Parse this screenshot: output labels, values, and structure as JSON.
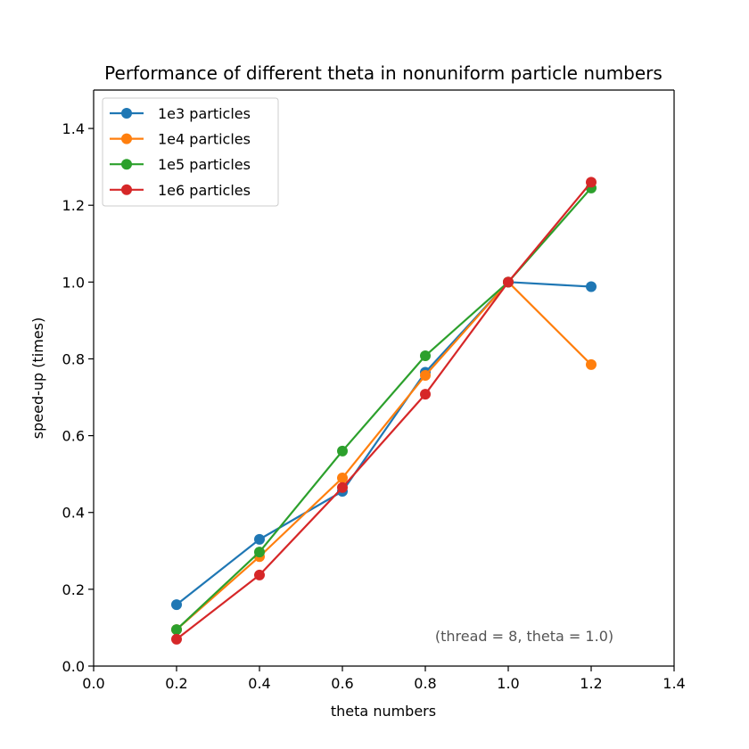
{
  "chart_data": {
    "type": "line",
    "title": "Performance of different theta in nonuniform particle numbers",
    "xlabel": "theta numbers",
    "ylabel": "speed-up (times)",
    "xlim": [
      0.0,
      1.4
    ],
    "ylim": [
      0.0,
      1.5
    ],
    "xticks": [
      "0.0",
      "0.2",
      "0.4",
      "0.6",
      "0.8",
      "1.0",
      "1.2",
      "1.4"
    ],
    "yticks": [
      "0.0",
      "0.2",
      "0.4",
      "0.6",
      "0.8",
      "1.0",
      "1.2",
      "1.4"
    ],
    "grid": false,
    "legend_position": "top-left",
    "annotation": "(thread = 8, theta = 1.0)",
    "x": [
      0.2,
      0.4,
      0.6,
      0.8,
      1.0,
      1.2
    ],
    "series": [
      {
        "name": "1e3 particles",
        "color": "#1f77b4",
        "values": [
          0.16,
          0.33,
          0.455,
          0.765,
          1.0,
          0.988
        ]
      },
      {
        "name": "1e4 particles",
        "color": "#ff7f0e",
        "values": [
          0.095,
          0.285,
          0.49,
          0.757,
          1.0,
          0.785
        ]
      },
      {
        "name": "1e5 particles",
        "color": "#2ca02c",
        "values": [
          0.095,
          0.297,
          0.56,
          0.808,
          1.0,
          1.245
        ]
      },
      {
        "name": "1e6 particles",
        "color": "#d62728",
        "values": [
          0.07,
          0.237,
          0.465,
          0.708,
          1.0,
          1.26
        ]
      }
    ]
  }
}
